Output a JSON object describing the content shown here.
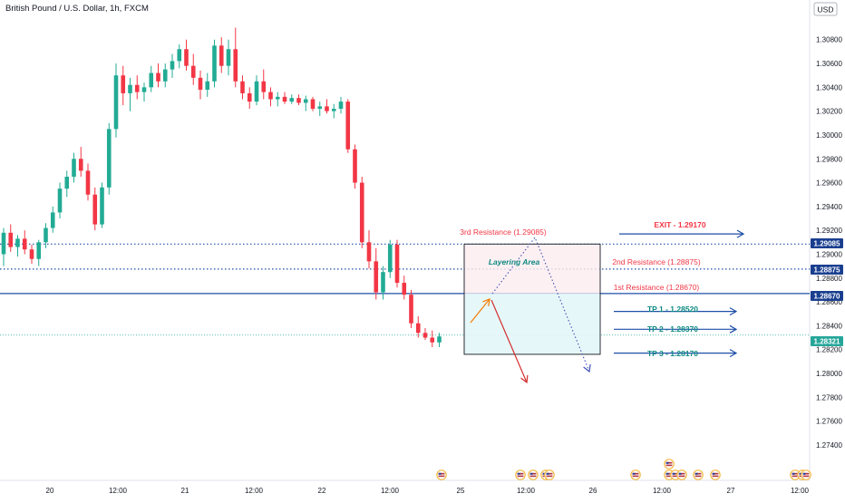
{
  "header": {
    "title": "British Pound / U.S. Dollar, 1h, FXCM",
    "currency": "USD"
  },
  "colors": {
    "up": "#22ab94",
    "down": "#f23645",
    "blue_line": "#1e4fa8",
    "resistance_text": "#f23645",
    "tp_text": "#0e8a82",
    "price_tag_blue": "#1a3f8f",
    "price_tag_green": "#26a69a"
  },
  "chart_data": {
    "type": "candlestick",
    "ylim": [
      1.2727,
      1.3095
    ],
    "y_ticks": [
      "1.30800",
      "1.30600",
      "1.30400",
      "1.30200",
      "1.30000",
      "1.29800",
      "1.29600",
      "1.29400",
      "1.29200",
      "1.29000",
      "1.28800",
      "1.28600",
      "1.28400",
      "1.28200",
      "1.28000",
      "1.27800",
      "1.27600",
      "1.27400"
    ],
    "x_ticks": [
      "20",
      "12:00",
      "21",
      "12:00",
      "22",
      "12:00",
      "25",
      "12:00",
      "26",
      "12:00",
      "27",
      "12:00"
    ],
    "candles": [
      [
        1.29,
        1.2922,
        1.289,
        1.2918
      ],
      [
        1.2918,
        1.2925,
        1.2902,
        1.2906
      ],
      [
        1.2906,
        1.2916,
        1.2898,
        1.2913
      ],
      [
        1.2913,
        1.292,
        1.29,
        1.2904
      ],
      [
        1.2904,
        1.2908,
        1.2892,
        1.2896
      ],
      [
        1.2896,
        1.2912,
        1.289,
        1.291
      ],
      [
        1.291,
        1.2926,
        1.2905,
        1.2922
      ],
      [
        1.2922,
        1.294,
        1.2918,
        1.2935
      ],
      [
        1.2935,
        1.296,
        1.293,
        1.2955
      ],
      [
        1.2955,
        1.297,
        1.2948,
        1.2965
      ],
      [
        1.2965,
        1.2985,
        1.296,
        1.298
      ],
      [
        1.298,
        1.299,
        1.2965,
        1.297
      ],
      [
        1.297,
        1.2976,
        1.2945,
        1.295
      ],
      [
        1.295,
        1.2956,
        1.292,
        1.2925
      ],
      [
        1.2925,
        1.296,
        1.2922,
        1.2956
      ],
      [
        1.2956,
        1.301,
        1.295,
        1.3005
      ],
      [
        1.3005,
        1.306,
        1.2998,
        1.305
      ],
      [
        1.305,
        1.3058,
        1.3025,
        1.3035
      ],
      [
        1.3035,
        1.3048,
        1.302,
        1.3042
      ],
      [
        1.3042,
        1.305,
        1.303,
        1.3036
      ],
      [
        1.3036,
        1.3044,
        1.3028,
        1.304
      ],
      [
        1.304,
        1.3058,
        1.3036,
        1.3052
      ],
      [
        1.3052,
        1.306,
        1.304,
        1.3045
      ],
      [
        1.3045,
        1.306,
        1.304,
        1.3055
      ],
      [
        1.3055,
        1.3068,
        1.3048,
        1.3062
      ],
      [
        1.3062,
        1.3076,
        1.3056,
        1.3072
      ],
      [
        1.3072,
        1.308,
        1.3054,
        1.3058
      ],
      [
        1.3058,
        1.3068,
        1.3042,
        1.3048
      ],
      [
        1.3048,
        1.3054,
        1.303,
        1.3038
      ],
      [
        1.3038,
        1.3052,
        1.3032,
        1.3045
      ],
      [
        1.3045,
        1.308,
        1.304,
        1.3075
      ],
      [
        1.3075,
        1.3082,
        1.3052,
        1.3058
      ],
      [
        1.3058,
        1.308,
        1.305,
        1.3072
      ],
      [
        1.3072,
        1.309,
        1.304,
        1.3045
      ],
      [
        1.3045,
        1.305,
        1.303,
        1.3035
      ],
      [
        1.3035,
        1.304,
        1.3022,
        1.3028
      ],
      [
        1.3028,
        1.305,
        1.3025,
        1.3045
      ],
      [
        1.3045,
        1.3055,
        1.303,
        1.3036
      ],
      [
        1.3036,
        1.304,
        1.3024,
        1.303
      ],
      [
        1.303,
        1.3036,
        1.3024,
        1.3032
      ],
      [
        1.3032,
        1.3036,
        1.3026,
        1.3028
      ],
      [
        1.3028,
        1.3034,
        1.3026,
        1.3031
      ],
      [
        1.3031,
        1.3034,
        1.3025,
        1.3027
      ],
      [
        1.3027,
        1.3033,
        1.302,
        1.303
      ],
      [
        1.303,
        1.3032,
        1.302,
        1.3022
      ],
      [
        1.3022,
        1.3028,
        1.3016,
        1.3024
      ],
      [
        1.3024,
        1.303,
        1.3018,
        1.302
      ],
      [
        1.302,
        1.3026,
        1.3014,
        1.3022
      ],
      [
        1.3022,
        1.3032,
        1.3018,
        1.3028
      ],
      [
        1.3028,
        1.303,
        1.2985,
        1.2988
      ],
      [
        1.2988,
        1.2992,
        1.2955,
        1.296
      ],
      [
        1.296,
        1.2965,
        1.2905,
        1.291
      ],
      [
        1.291,
        1.292,
        1.2888,
        1.2894
      ],
      [
        1.2894,
        1.2905,
        1.2862,
        1.2868
      ],
      [
        1.2868,
        1.289,
        1.2862,
        1.2885
      ],
      [
        1.2885,
        1.2912,
        1.288,
        1.2908
      ],
      [
        1.2908,
        1.2912,
        1.2872,
        1.2876
      ],
      [
        1.2876,
        1.2882,
        1.2862,
        1.2866
      ],
      [
        1.2866,
        1.287,
        1.2838,
        1.2842
      ],
      [
        1.2842,
        1.2848,
        1.283,
        1.2834
      ],
      [
        1.2834,
        1.2838,
        1.2828,
        1.283
      ],
      [
        1.283,
        1.2836,
        1.2822,
        1.2826
      ],
      [
        1.2826,
        1.2834,
        1.2822,
        1.2831
      ]
    ],
    "levels": [
      {
        "price": 1.29085,
        "label": "1.29085"
      },
      {
        "price": 1.28875,
        "label": "1.28875"
      },
      {
        "price": 1.2867,
        "label": "1.28670"
      },
      {
        "price": 1.28321,
        "label": "1.28321"
      }
    ],
    "annotations": {
      "res3": "3rd Resistance (1.29085)",
      "res2": "2nd Resistance (1.28875)",
      "res1": "1st Resistance (1.28670)",
      "layering": "Layering Area",
      "exit": "EXIT - 1.29170",
      "tp1": "TP 1 - 1.28520",
      "tp2": "TP 2 - 1.28370",
      "tp3": "TP 3 - 1.28170"
    },
    "zone": {
      "top": 1.29085,
      "mid": 1.2867,
      "bottom": 1.2816
    },
    "arrows": {
      "exit": 1.2917,
      "tp1": 1.2852,
      "tp2": 1.2837,
      "tp3": 1.2817
    }
  }
}
